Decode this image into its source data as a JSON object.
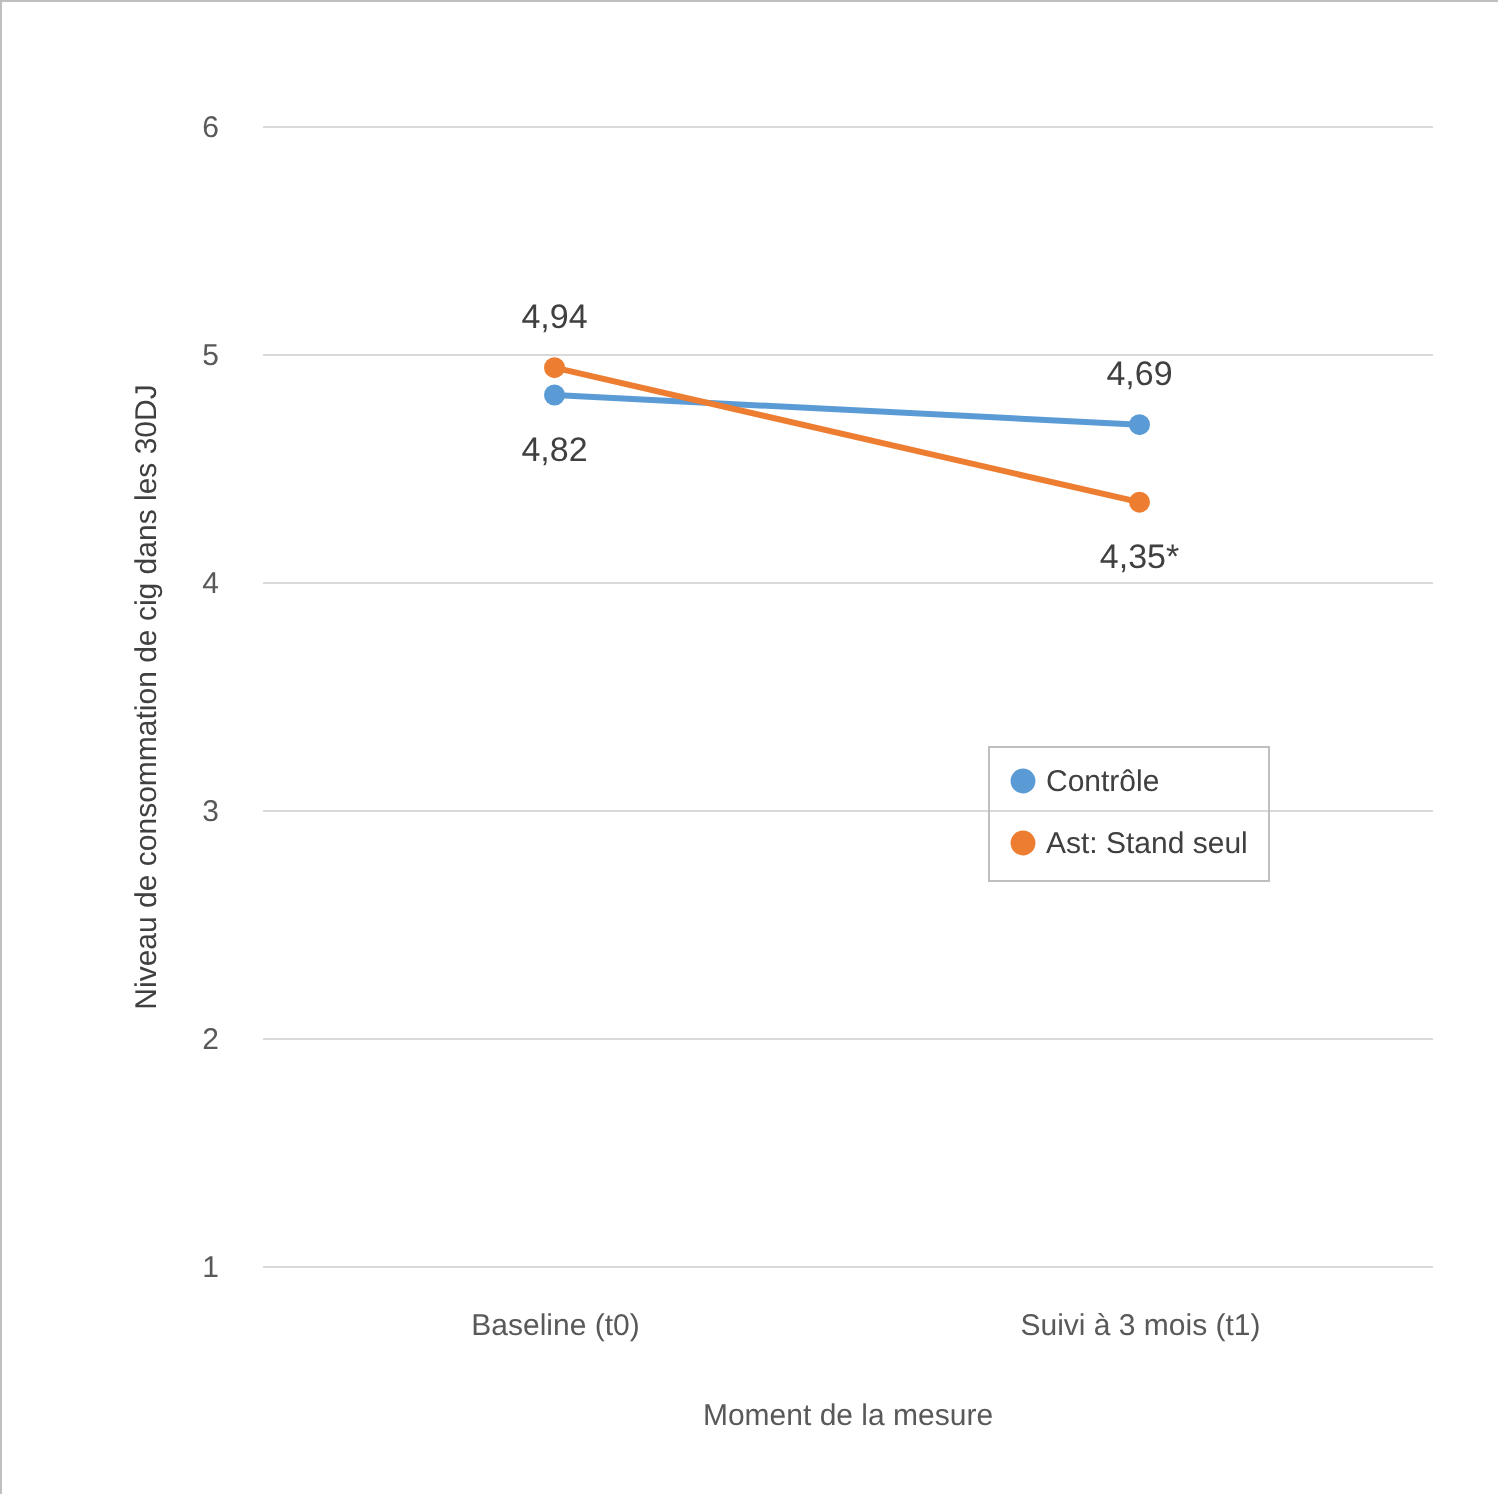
{
  "chart_data": {
    "type": "line",
    "xlabel": "Moment de la mesure",
    "ylabel": "Niveau de consommation de cig dans les 30DJ",
    "categories": [
      "Baseline (t0)",
      "Suivi à 3 mois (t1)"
    ],
    "series": [
      {
        "name": "Contrôle",
        "color": "#5b9bd5",
        "values": [
          4.82,
          4.69
        ],
        "value_labels": [
          "4,82",
          "4,69"
        ]
      },
      {
        "name": "Ast: Stand seul",
        "color": "#ed7d31",
        "values": [
          4.94,
          4.35
        ],
        "value_labels": [
          "4,94",
          "4,35*"
        ]
      }
    ],
    "ylim": [
      1,
      6
    ],
    "yticks": [
      1,
      2,
      3,
      4,
      5,
      6
    ],
    "grid": "y",
    "legend": "right",
    "marker": "circle"
  }
}
